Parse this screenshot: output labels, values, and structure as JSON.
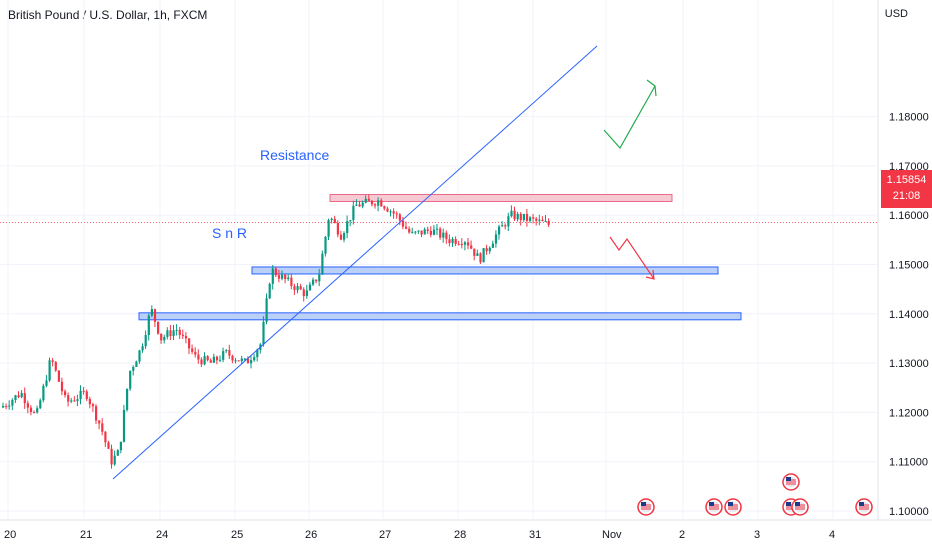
{
  "header": {
    "title": "British Pound / U.S. Dollar, 1h, FXCM",
    "currency": "USD"
  },
  "price_tag": {
    "price": "1.15854",
    "countdown": "21:08",
    "color": "#f23645"
  },
  "colors": {
    "up": "#089981",
    "down": "#f23645",
    "trend": "#2962ff",
    "zone_fill": "#bbd0f7",
    "zone_border": "#2962ff",
    "resistance_fill": "#f7c9d3",
    "arrow_up": "#22ab4b",
    "arrow_down": "#f23645"
  },
  "annotations": {
    "resistance": "Resistance",
    "snr": "S n R"
  },
  "events": [
    "us-flag-icon",
    "us-flag-icon",
    "us-flag-icon",
    "uk-flag-icon",
    "us-flag-icon",
    "us-flag-icon",
    "us-flag-icon"
  ],
  "chart_data": {
    "type": "candlestick",
    "title": "British Pound / U.S. Dollar, 1h, FXCM",
    "y_unit": "USD",
    "ylim": [
      1.1,
      1.185
    ],
    "y_ticks": [
      "1.18000",
      "1.17000",
      "1.16000",
      "1.15000",
      "1.14000",
      "1.13000",
      "1.12000",
      "1.11000",
      "1.10000"
    ],
    "x_ticks": [
      "20",
      "21",
      "24",
      "25",
      "26",
      "27",
      "28",
      "31",
      "Nov",
      "2",
      "3",
      "4"
    ],
    "last_price": 1.15854,
    "path": [
      [
        0,
        1.121
      ],
      [
        20,
        1.124
      ],
      [
        35,
        1.119
      ],
      [
        50,
        1.131
      ],
      [
        65,
        1.122
      ],
      [
        85,
        1.124
      ],
      [
        100,
        1.117
      ],
      [
        110,
        1.11
      ],
      [
        118,
        1.112
      ],
      [
        128,
        1.128
      ],
      [
        140,
        1.133
      ],
      [
        150,
        1.141
      ],
      [
        160,
        1.135
      ],
      [
        175,
        1.137
      ],
      [
        195,
        1.131
      ],
      [
        210,
        1.13
      ],
      [
        225,
        1.132
      ],
      [
        245,
        1.13
      ],
      [
        260,
        1.134
      ],
      [
        270,
        1.149
      ],
      [
        290,
        1.146
      ],
      [
        305,
        1.144
      ],
      [
        318,
        1.148
      ],
      [
        328,
        1.16
      ],
      [
        340,
        1.156
      ],
      [
        355,
        1.162
      ],
      [
        378,
        1.163
      ],
      [
        395,
        1.16
      ],
      [
        410,
        1.156
      ],
      [
        430,
        1.157
      ],
      [
        448,
        1.155
      ],
      [
        465,
        1.155
      ],
      [
        478,
        1.151
      ],
      [
        495,
        1.156
      ],
      [
        510,
        1.16
      ],
      [
        530,
        1.159
      ],
      [
        550,
        1.158
      ]
    ],
    "zones": [
      {
        "name": "Resistance",
        "low": 1.1632,
        "high": 1.1642,
        "x_start": "26",
        "x_end": "Nov 2"
      },
      {
        "name": "S n R",
        "low": 1.1485,
        "high": 1.1495,
        "x_start": "25",
        "x_end": "Nov 2"
      },
      {
        "name": "",
        "low": 1.1392,
        "high": 1.1402,
        "x_start": "21",
        "x_end": "Nov 2"
      }
    ],
    "trendline": {
      "from": [
        1.1055
      ],
      "to": [
        1.1825
      ]
    },
    "projections": [
      {
        "direction": "up",
        "path": [
          1.1645,
          1.1665,
          1.1645,
          1.1755
        ]
      },
      {
        "direction": "down",
        "path": [
          1.1495,
          1.1475,
          1.1495,
          1.1415
        ]
      }
    ]
  }
}
